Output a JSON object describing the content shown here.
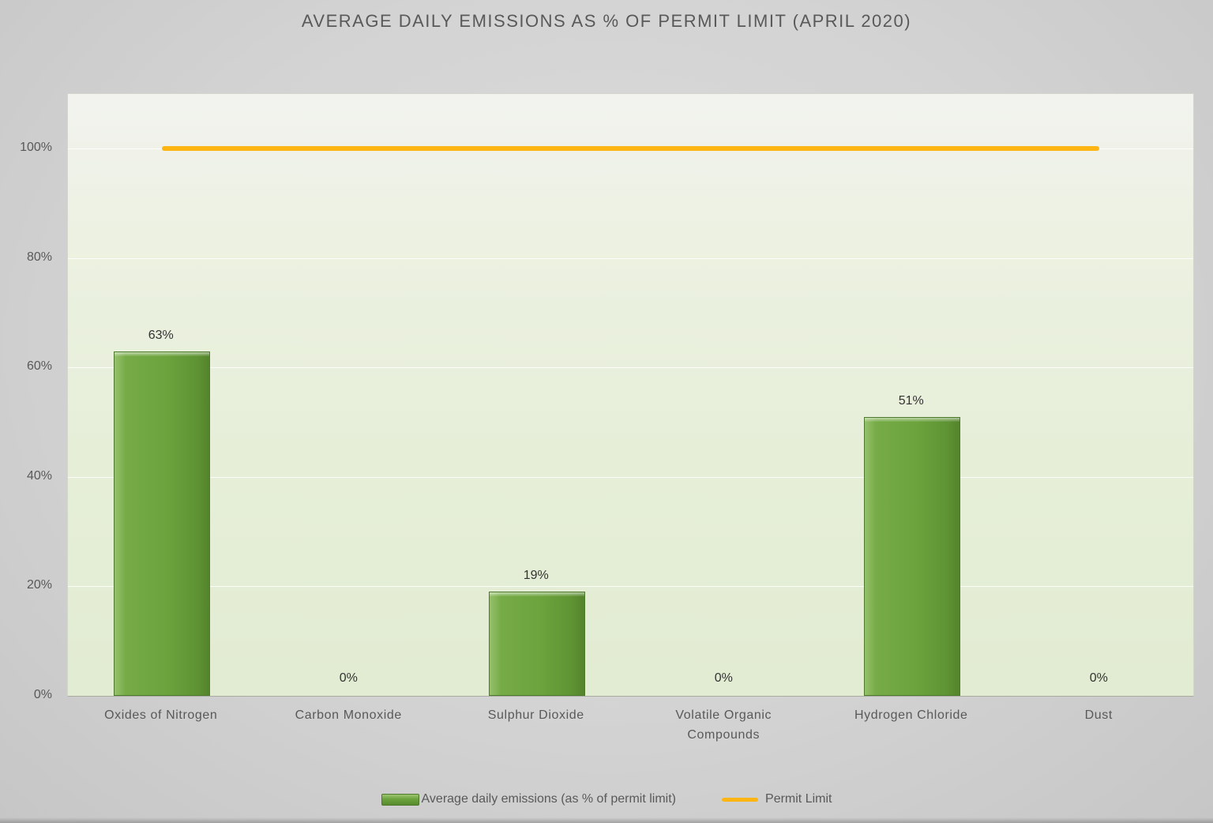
{
  "chart_data": {
    "type": "bar",
    "title": "AVERAGE DAILY EMISSIONS AS % OF PERMIT LIMIT (APRIL 2020)",
    "categories": [
      "Oxides of Nitrogen",
      "Carbon Monoxide",
      "Sulphur Dioxide",
      "Volatile Organic Compounds",
      "Hydrogen Chloride",
      "Dust"
    ],
    "series": [
      {
        "name": "Average daily emissions (as % of permit limit)",
        "type": "bar",
        "values": [
          63,
          0,
          19,
          0,
          51,
          0
        ],
        "labels": [
          "63%",
          "0%",
          "19%",
          "0%",
          "51%",
          "0%"
        ],
        "color": "#6ca33d"
      },
      {
        "name": "Permit Limit",
        "type": "line",
        "values": [
          100,
          100,
          100,
          100,
          100,
          100
        ],
        "color": "#fdb514"
      }
    ],
    "y_ticks": [
      "0%",
      "20%",
      "40%",
      "60%",
      "80%",
      "100%"
    ],
    "y_tick_values": [
      0,
      20,
      40,
      60,
      80,
      100
    ],
    "ylim": [
      0,
      110
    ],
    "grid": true,
    "legend_position": "bottom"
  }
}
